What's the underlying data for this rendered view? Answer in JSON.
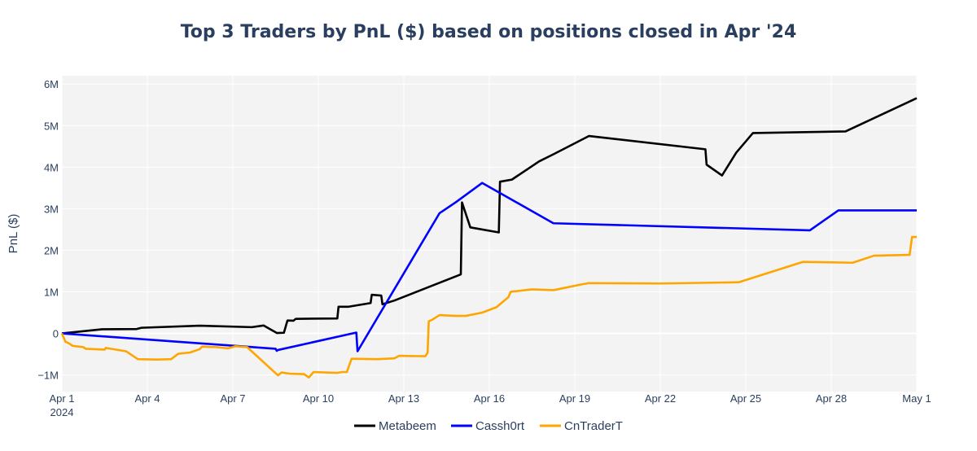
{
  "chart_data": {
    "type": "line",
    "title": "Top 3 Traders by PnL ($) based on positions closed in Apr '24",
    "xlabel": "",
    "ylabel": "PnL ($)",
    "xlim": [
      "2024-04-01",
      "2024-05-01"
    ],
    "ylim": [
      -1400000,
      6200000
    ],
    "grid": true,
    "legend_position": "bottom-center",
    "x_ticks": [
      {
        "date": "2024-04-01",
        "label": "Apr 1",
        "sublabel": "2024"
      },
      {
        "date": "2024-04-04",
        "label": "Apr 4"
      },
      {
        "date": "2024-04-07",
        "label": "Apr 7"
      },
      {
        "date": "2024-04-10",
        "label": "Apr 10"
      },
      {
        "date": "2024-04-13",
        "label": "Apr 13"
      },
      {
        "date": "2024-04-16",
        "label": "Apr 16"
      },
      {
        "date": "2024-04-19",
        "label": "Apr 19"
      },
      {
        "date": "2024-04-22",
        "label": "Apr 22"
      },
      {
        "date": "2024-04-25",
        "label": "Apr 25"
      },
      {
        "date": "2024-04-28",
        "label": "Apr 28"
      },
      {
        "date": "2024-05-01",
        "label": "May 1"
      }
    ],
    "y_ticks": [
      {
        "value": -1000000,
        "label": "−1M"
      },
      {
        "value": 0,
        "label": "0"
      },
      {
        "value": 1000000,
        "label": "1M"
      },
      {
        "value": 2000000,
        "label": "2M"
      },
      {
        "value": 3000000,
        "label": "3M"
      },
      {
        "value": 4000000,
        "label": "4M"
      },
      {
        "value": 5000000,
        "label": "5M"
      },
      {
        "value": 6000000,
        "label": "6M"
      }
    ],
    "series": [
      {
        "name": "Metabeem",
        "color": "#000000",
        "points": [
          [
            "2024-04-01 00:00",
            0
          ],
          [
            "2024-04-02 10:00",
            100000
          ],
          [
            "2024-04-03 15:00",
            105000
          ],
          [
            "2024-04-03 19:00",
            135000
          ],
          [
            "2024-04-05 20:00",
            185000
          ],
          [
            "2024-04-07 16:00",
            150000
          ],
          [
            "2024-04-08 02:00",
            190000
          ],
          [
            "2024-04-08 13:00",
            10000
          ],
          [
            "2024-04-08 19:00",
            15000
          ],
          [
            "2024-04-08 22:00",
            310000
          ],
          [
            "2024-04-09 03:00",
            305000
          ],
          [
            "2024-04-09 05:00",
            350000
          ],
          [
            "2024-04-10 16:00",
            360000
          ],
          [
            "2024-04-10 17:00",
            640000
          ],
          [
            "2024-04-11 01:00",
            640000
          ],
          [
            "2024-04-11 20:00",
            730000
          ],
          [
            "2024-04-11 21:00",
            930000
          ],
          [
            "2024-04-12 05:00",
            910000
          ],
          [
            "2024-04-12 06:00",
            700000
          ],
          [
            "2024-04-12 16:00",
            790000
          ],
          [
            "2024-04-15 00:00",
            1420000
          ],
          [
            "2024-04-15 01:00",
            3150000
          ],
          [
            "2024-04-15 08:00",
            2550000
          ],
          [
            "2024-04-16 08:00",
            2430000
          ],
          [
            "2024-04-16 09:00",
            3650000
          ],
          [
            "2024-04-16 19:00",
            3700000
          ],
          [
            "2024-04-17 18:00",
            4140000
          ],
          [
            "2024-04-18 06:00",
            4310000
          ],
          [
            "2024-04-19 12:00",
            4750000
          ],
          [
            "2024-04-23 14:00",
            4430000
          ],
          [
            "2024-04-23 15:00",
            4060000
          ],
          [
            "2024-04-24 04:00",
            3800000
          ],
          [
            "2024-04-24 16:00",
            4350000
          ],
          [
            "2024-04-25 06:00",
            4820000
          ],
          [
            "2024-04-28 12:00",
            4860000
          ],
          [
            "2024-05-01 00:00",
            5660000
          ]
        ]
      },
      {
        "name": "Cassh0rt",
        "color": "#0000ff",
        "points": [
          [
            "2024-04-01 00:00",
            0
          ],
          [
            "2024-04-08 12:00",
            -370000
          ],
          [
            "2024-04-08 13:00",
            -420000
          ],
          [
            "2024-04-08 14:00",
            -400000
          ],
          [
            "2024-04-11 08:00",
            20000
          ],
          [
            "2024-04-11 09:00",
            -430000
          ],
          [
            "2024-04-14 06:00",
            2890000
          ],
          [
            "2024-04-14 20:00",
            3160000
          ],
          [
            "2024-04-15 18:00",
            3620000
          ],
          [
            "2024-04-18 06:00",
            2650000
          ],
          [
            "2024-04-27 06:00",
            2480000
          ],
          [
            "2024-04-28 06:00",
            2960000
          ],
          [
            "2024-05-01 00:00",
            2960000
          ]
        ]
      },
      {
        "name": "CnTraderT",
        "color": "#ffa500",
        "points": [
          [
            "2024-04-01 00:00",
            0
          ],
          [
            "2024-04-01 03:00",
            -200000
          ],
          [
            "2024-04-01 06:00",
            -240000
          ],
          [
            "2024-04-01 09:00",
            -300000
          ],
          [
            "2024-04-01 18:00",
            -330000
          ],
          [
            "2024-04-01 20:00",
            -370000
          ],
          [
            "2024-04-02 12:00",
            -390000
          ],
          [
            "2024-04-02 13:00",
            -350000
          ],
          [
            "2024-04-03 06:00",
            -430000
          ],
          [
            "2024-04-03 16:00",
            -620000
          ],
          [
            "2024-04-04 08:00",
            -630000
          ],
          [
            "2024-04-04 20:00",
            -620000
          ],
          [
            "2024-04-05 02:00",
            -490000
          ],
          [
            "2024-04-05 12:00",
            -460000
          ],
          [
            "2024-04-05 20:00",
            -380000
          ],
          [
            "2024-04-05 22:00",
            -320000
          ],
          [
            "2024-04-06 10:00",
            -330000
          ],
          [
            "2024-04-06 20:00",
            -360000
          ],
          [
            "2024-04-07 02:00",
            -310000
          ],
          [
            "2024-04-07 12:00",
            -330000
          ],
          [
            "2024-04-08 14:00",
            -1010000
          ],
          [
            "2024-04-08 17:00",
            -940000
          ],
          [
            "2024-04-09 00:00",
            -970000
          ],
          [
            "2024-04-09 12:00",
            -980000
          ],
          [
            "2024-04-09 16:00",
            -1060000
          ],
          [
            "2024-04-09 20:00",
            -930000
          ],
          [
            "2024-04-10 16:00",
            -950000
          ],
          [
            "2024-04-10 20:00",
            -930000
          ],
          [
            "2024-04-11 00:00",
            -930000
          ],
          [
            "2024-04-11 04:00",
            -610000
          ],
          [
            "2024-04-12 02:00",
            -620000
          ],
          [
            "2024-04-12 16:00",
            -600000
          ],
          [
            "2024-04-12 20:00",
            -540000
          ],
          [
            "2024-04-13 18:00",
            -550000
          ],
          [
            "2024-04-13 20:00",
            -470000
          ],
          [
            "2024-04-13 21:00",
            290000
          ],
          [
            "2024-04-14 00:00",
            330000
          ],
          [
            "2024-04-14 06:00",
            440000
          ],
          [
            "2024-04-14 20:00",
            420000
          ],
          [
            "2024-04-15 04:00",
            420000
          ],
          [
            "2024-04-15 18:00",
            500000
          ],
          [
            "2024-04-16 06:00",
            630000
          ],
          [
            "2024-04-16 16:00",
            870000
          ],
          [
            "2024-04-16 18:00",
            1000000
          ],
          [
            "2024-04-17 12:00",
            1060000
          ],
          [
            "2024-04-18 06:00",
            1040000
          ],
          [
            "2024-04-19 06:00",
            1180000
          ],
          [
            "2024-04-19 12:00",
            1210000
          ],
          [
            "2024-04-22 00:00",
            1200000
          ],
          [
            "2024-04-24 18:00",
            1230000
          ],
          [
            "2024-04-27 00:00",
            1720000
          ],
          [
            "2024-04-28 18:00",
            1700000
          ],
          [
            "2024-04-29 12:00",
            1870000
          ],
          [
            "2024-04-30 18:00",
            1890000
          ],
          [
            "2024-04-30 20:00",
            2320000
          ],
          [
            "2024-05-01 00:00",
            2320000
          ]
        ]
      }
    ]
  }
}
